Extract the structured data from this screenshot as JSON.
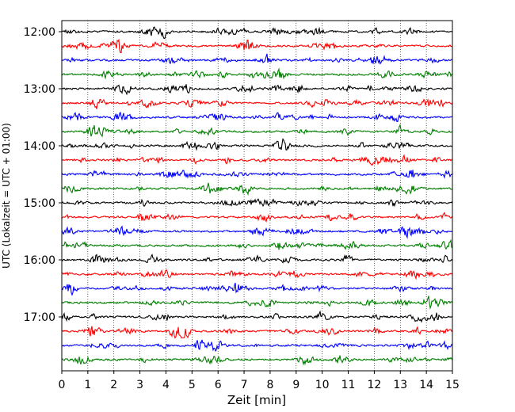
{
  "chart_data": {
    "type": "line",
    "title": "",
    "xlabel": "Zeit  [min]",
    "ylabel": "UTC (Lokalzeit = UTC + 01:00)",
    "xlim": [
      0,
      15
    ],
    "x_ticks": [
      "0",
      "1",
      "2",
      "3",
      "4",
      "5",
      "6",
      "7",
      "8",
      "9",
      "10",
      "11",
      "12",
      "13",
      "14",
      "15"
    ],
    "y_ticks": [
      "12:00",
      "13:00",
      "14:00",
      "15:00",
      "16:00",
      "17:00"
    ],
    "rows_per_hour": 4,
    "row_minutes": 15,
    "start_time": "12:00",
    "grid": "vertical dotted",
    "series_colors": [
      "#000000",
      "#ff0000",
      "#0000ff",
      "#008000"
    ],
    "rows": [
      {
        "time": "12:00",
        "color": "#000000"
      },
      {
        "time": "12:15",
        "color": "#ff0000"
      },
      {
        "time": "12:30",
        "color": "#0000ff"
      },
      {
        "time": "12:45",
        "color": "#008000"
      },
      {
        "time": "13:00",
        "color": "#000000"
      },
      {
        "time": "13:15",
        "color": "#ff0000"
      },
      {
        "time": "13:30",
        "color": "#0000ff"
      },
      {
        "time": "13:45",
        "color": "#008000"
      },
      {
        "time": "14:00",
        "color": "#000000"
      },
      {
        "time": "14:15",
        "color": "#ff0000"
      },
      {
        "time": "14:30",
        "color": "#0000ff"
      },
      {
        "time": "14:45",
        "color": "#008000"
      },
      {
        "time": "15:00",
        "color": "#000000"
      },
      {
        "time": "15:15",
        "color": "#ff0000"
      },
      {
        "time": "15:30",
        "color": "#0000ff"
      },
      {
        "time": "15:45",
        "color": "#008000"
      },
      {
        "time": "16:00",
        "color": "#000000"
      },
      {
        "time": "16:15",
        "color": "#ff0000"
      },
      {
        "time": "16:30",
        "color": "#0000ff"
      },
      {
        "time": "16:45",
        "color": "#008000"
      },
      {
        "time": "17:00",
        "color": "#000000"
      },
      {
        "time": "17:15",
        "color": "#ff0000"
      },
      {
        "time": "17:30",
        "color": "#0000ff"
      },
      {
        "time": "17:45",
        "color": "#008000"
      }
    ]
  }
}
